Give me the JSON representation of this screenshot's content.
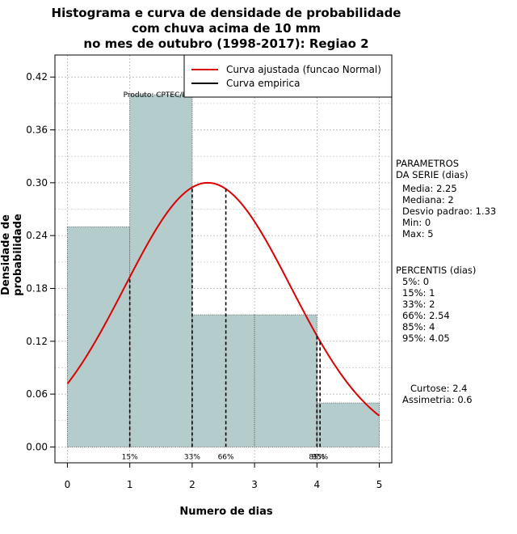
{
  "title_lines": [
    "Histograma e curva de densidade de probabilidade",
    "com chuva acima de 10 mm",
    "no mes de outubro (1998-2017): Regiao 2"
  ],
  "product_label": "Produto: CPTEC/INPE",
  "chart_data": {
    "type": "histogram",
    "xlabel": "Numero de dias",
    "ylabel": "Densidade de probabilidade",
    "xlim": [
      -0.2,
      5.2
    ],
    "ylim": [
      -0.018,
      0.445
    ],
    "x_ticks": [
      0,
      1,
      2,
      3,
      4,
      5
    ],
    "y_ticks": [
      0.0,
      0.06,
      0.12,
      0.18,
      0.24,
      0.3,
      0.36,
      0.42
    ],
    "y_tick_labels": [
      "0.00",
      "0.06",
      "0.12",
      "0.18",
      "0.24",
      "0.30",
      "0.36",
      "0.42"
    ],
    "grid": true,
    "bins": [
      {
        "x0": 0,
        "x1": 1,
        "density": 0.25
      },
      {
        "x0": 1,
        "x1": 2,
        "density": 0.4
      },
      {
        "x0": 2,
        "x1": 3,
        "density": 0.15
      },
      {
        "x0": 3,
        "x1": 4,
        "density": 0.15
      },
      {
        "x0": 4,
        "x1": 5,
        "density": 0.05
      }
    ],
    "normal_curve": {
      "mean": 2.25,
      "sd": 1.33
    },
    "percentile_lines": [
      {
        "label": "15%",
        "x": 1
      },
      {
        "label": "33%",
        "x": 2
      },
      {
        "label": "66%",
        "x": 2.54
      },
      {
        "label": "85%",
        "x": 4
      },
      {
        "label": "95%",
        "x": 4.05
      }
    ],
    "legend": {
      "position": "top-right",
      "entries": [
        {
          "label": "Curva ajustada (funcao Normal)",
          "color": "#dd0000"
        },
        {
          "label": "Curva empirica",
          "color": "#000000"
        }
      ]
    },
    "colors": {
      "bar_fill": "#b5cccc",
      "curve": "#dd0000",
      "grid": "#b0b0b0"
    }
  },
  "params": {
    "header": [
      "PARAMETROS",
      "DA SERIE (dias)"
    ],
    "items": [
      "Media: 2.25",
      "Mediana: 2",
      "Desvio padrao: 1.33",
      "Min: 0",
      "Max: 5"
    ]
  },
  "percentiles": {
    "header": "PERCENTIS (dias)",
    "items": [
      "5%: 0",
      "15%: 1",
      "33%: 2",
      "66%: 2.54",
      "85%: 4",
      "95%: 4.05"
    ]
  },
  "shape": {
    "kurtosis": "Curtose: 2.4",
    "skewness": "Assimetria: 0.6"
  }
}
